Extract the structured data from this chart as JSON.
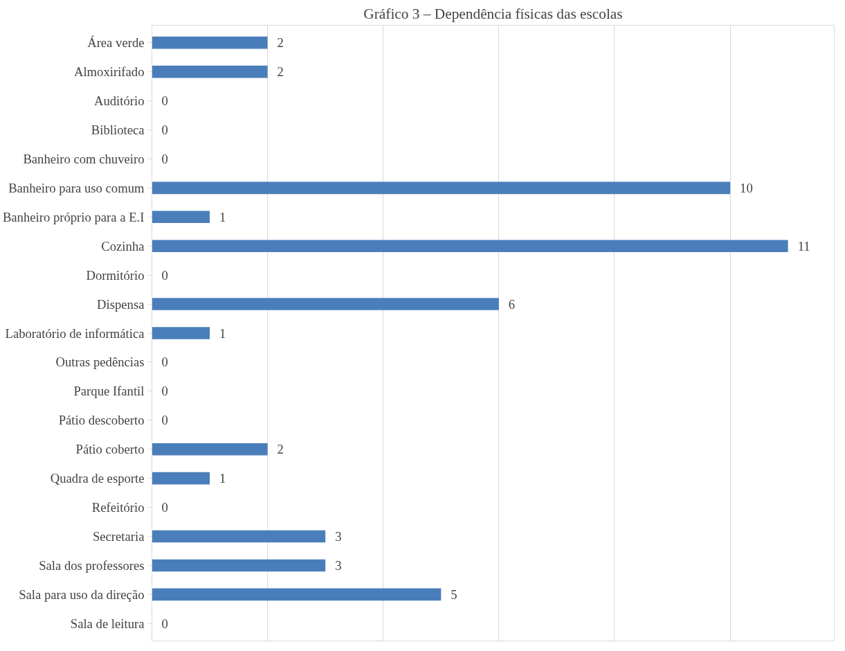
{
  "chart_data": {
    "type": "bar",
    "orientation": "horizontal",
    "title": "Gráfico 3 – Dependência físicas das escolas",
    "categories": [
      "Área verde",
      "Almoxirifado",
      "Auditório",
      "Biblioteca",
      "Banheiro com chuveiro",
      "Banheiro para uso comum",
      "Banheiro próprio para a E.I",
      "Cozinha",
      "Dormitório",
      "Dispensa",
      "Laboratório de informática",
      "Outras pedências",
      "Parque Ifantil",
      "Pátio descoberto",
      "Pátio coberto",
      "Quadra de esporte",
      "Refeitório",
      "Secretaria",
      "Sala dos professores",
      "Sala para uso da direção",
      "Sala de leitura"
    ],
    "values": [
      2,
      2,
      0,
      0,
      0,
      10,
      1,
      11,
      0,
      6,
      1,
      0,
      0,
      0,
      2,
      1,
      0,
      3,
      3,
      5,
      0
    ],
    "color": "#4a7ebb",
    "xlim": [
      0,
      11.8
    ],
    "xticks": [
      {
        "value": 0,
        "label": null
      },
      {
        "value": 2,
        "label": null
      },
      {
        "value": 4,
        "label": null
      },
      {
        "value": 6,
        "label": null
      },
      {
        "value": 8,
        "label": null
      },
      {
        "value": 10,
        "label": null
      }
    ],
    "grid": "x",
    "tick_labels": "y",
    "data_labels": true
  }
}
